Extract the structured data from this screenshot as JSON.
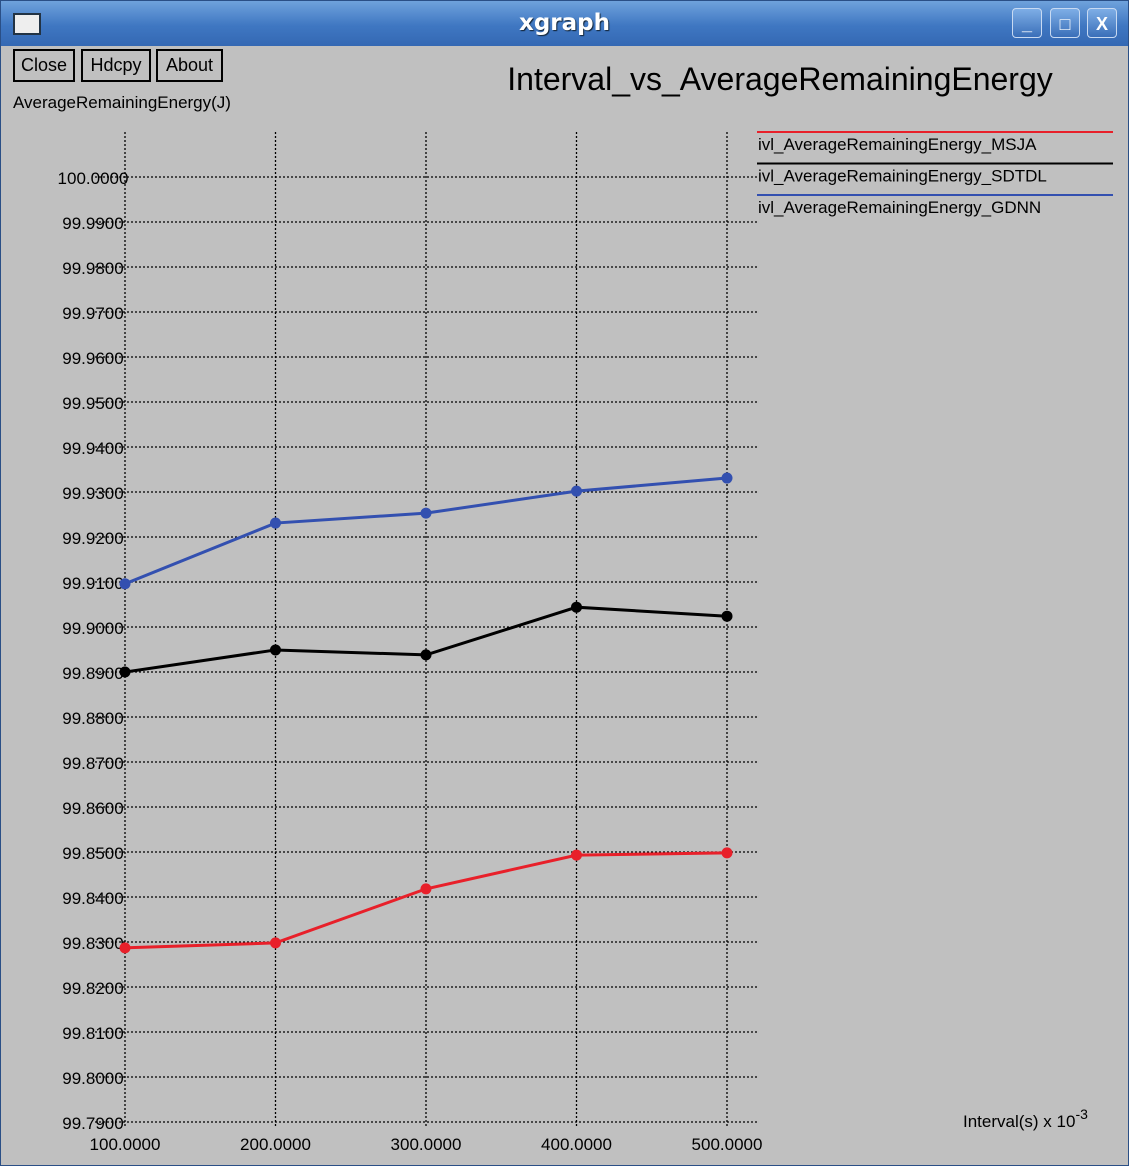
{
  "window": {
    "title": "xgraph",
    "controls": [
      "minimize",
      "maximize",
      "close"
    ]
  },
  "toolbar": {
    "close_label": "Close",
    "hdcpy_label": "Hdcpy",
    "about_label": "About"
  },
  "chart_data": {
    "type": "line",
    "title": "Interval_vs_AverageRemainingEnergy",
    "ylabel": "AverageRemainingEnergy(J)",
    "xlabel": "Interval(s) x 10",
    "xlabel_exponent": "-3",
    "x": [
      100,
      200,
      300,
      400,
      500
    ],
    "xticks": [
      "100.0000",
      "200.0000",
      "300.0000",
      "400.0000",
      "500.0000"
    ],
    "yticks": [
      "99.7900",
      "99.8000",
      "99.8100",
      "99.8200",
      "99.8300",
      "99.8400",
      "99.8500",
      "99.8600",
      "99.8700",
      "99.8800",
      "99.8900",
      "99.9000",
      "99.9100",
      "99.9200",
      "99.9300",
      "99.9400",
      "99.9500",
      "99.9600",
      "99.9700",
      "99.9800",
      "99.9900",
      "100.0000"
    ],
    "xlim": [
      100,
      500
    ],
    "ylim": [
      99.79,
      100.0
    ],
    "grid": true,
    "legend_placement": "right",
    "series": [
      {
        "name": "ivl_AverageRemainingEnergy_MSJA",
        "color": "#e8202a",
        "values": [
          99.8287,
          99.8298,
          99.8418,
          99.8493,
          99.8498
        ]
      },
      {
        "name": "ivl_AverageRemainingEnergy_SDTDL",
        "color": "#000000",
        "values": [
          99.89,
          99.8949,
          99.8938,
          99.9044,
          99.9024
        ]
      },
      {
        "name": "ivl_AverageRemainingEnergy_GDNN",
        "color": "#3350b0",
        "values": [
          99.9096,
          99.9231,
          99.9253,
          99.9302,
          99.9331
        ]
      }
    ]
  }
}
